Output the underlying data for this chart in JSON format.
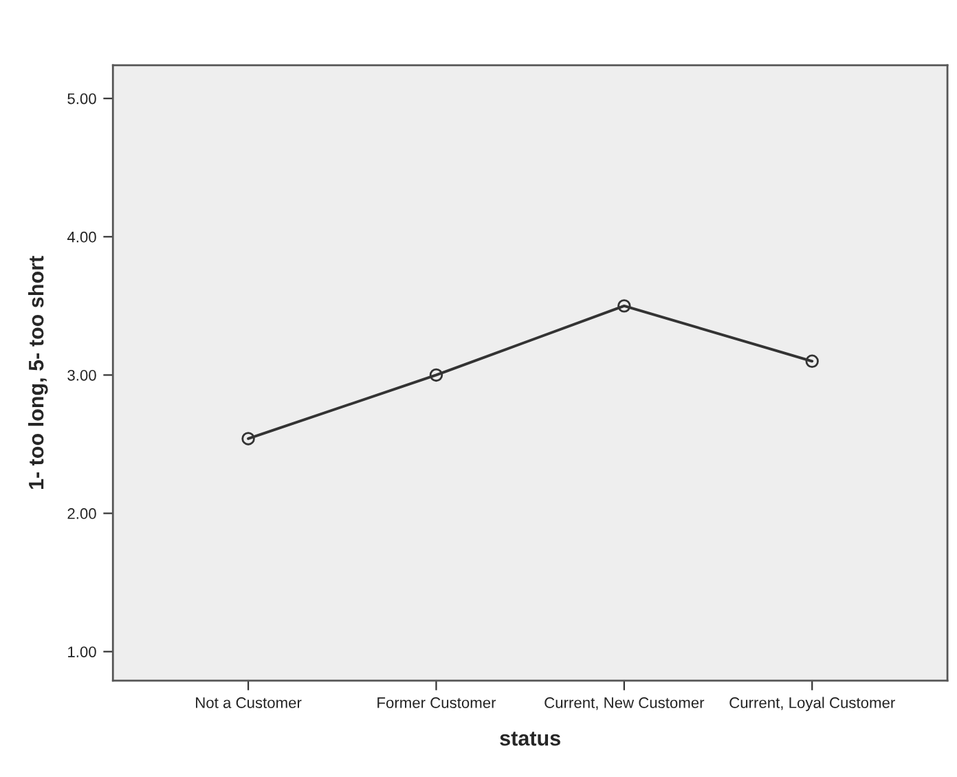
{
  "chart_data": {
    "type": "line",
    "xlabel": "status",
    "ylabel": "1- too long, 5- too short",
    "categories": [
      "Not a Customer",
      "Former Customer",
      "Current, New Customer",
      "Current, Loyal Customer"
    ],
    "series": [
      {
        "color": "#333333",
        "values": [
          2.54,
          3.0,
          3.5,
          3.1
        ]
      }
    ],
    "ylim": [
      0.79,
      5.24
    ],
    "yticks": [
      {
        "value": 1,
        "label": "1.00"
      },
      {
        "value": 2,
        "label": "2.00"
      },
      {
        "value": 3,
        "label": "3.00"
      },
      {
        "value": 4,
        "label": "4.00"
      },
      {
        "value": 5,
        "label": "5.00"
      }
    ],
    "grid": false,
    "legend": false,
    "marker": "circle",
    "line_style": "solid"
  }
}
